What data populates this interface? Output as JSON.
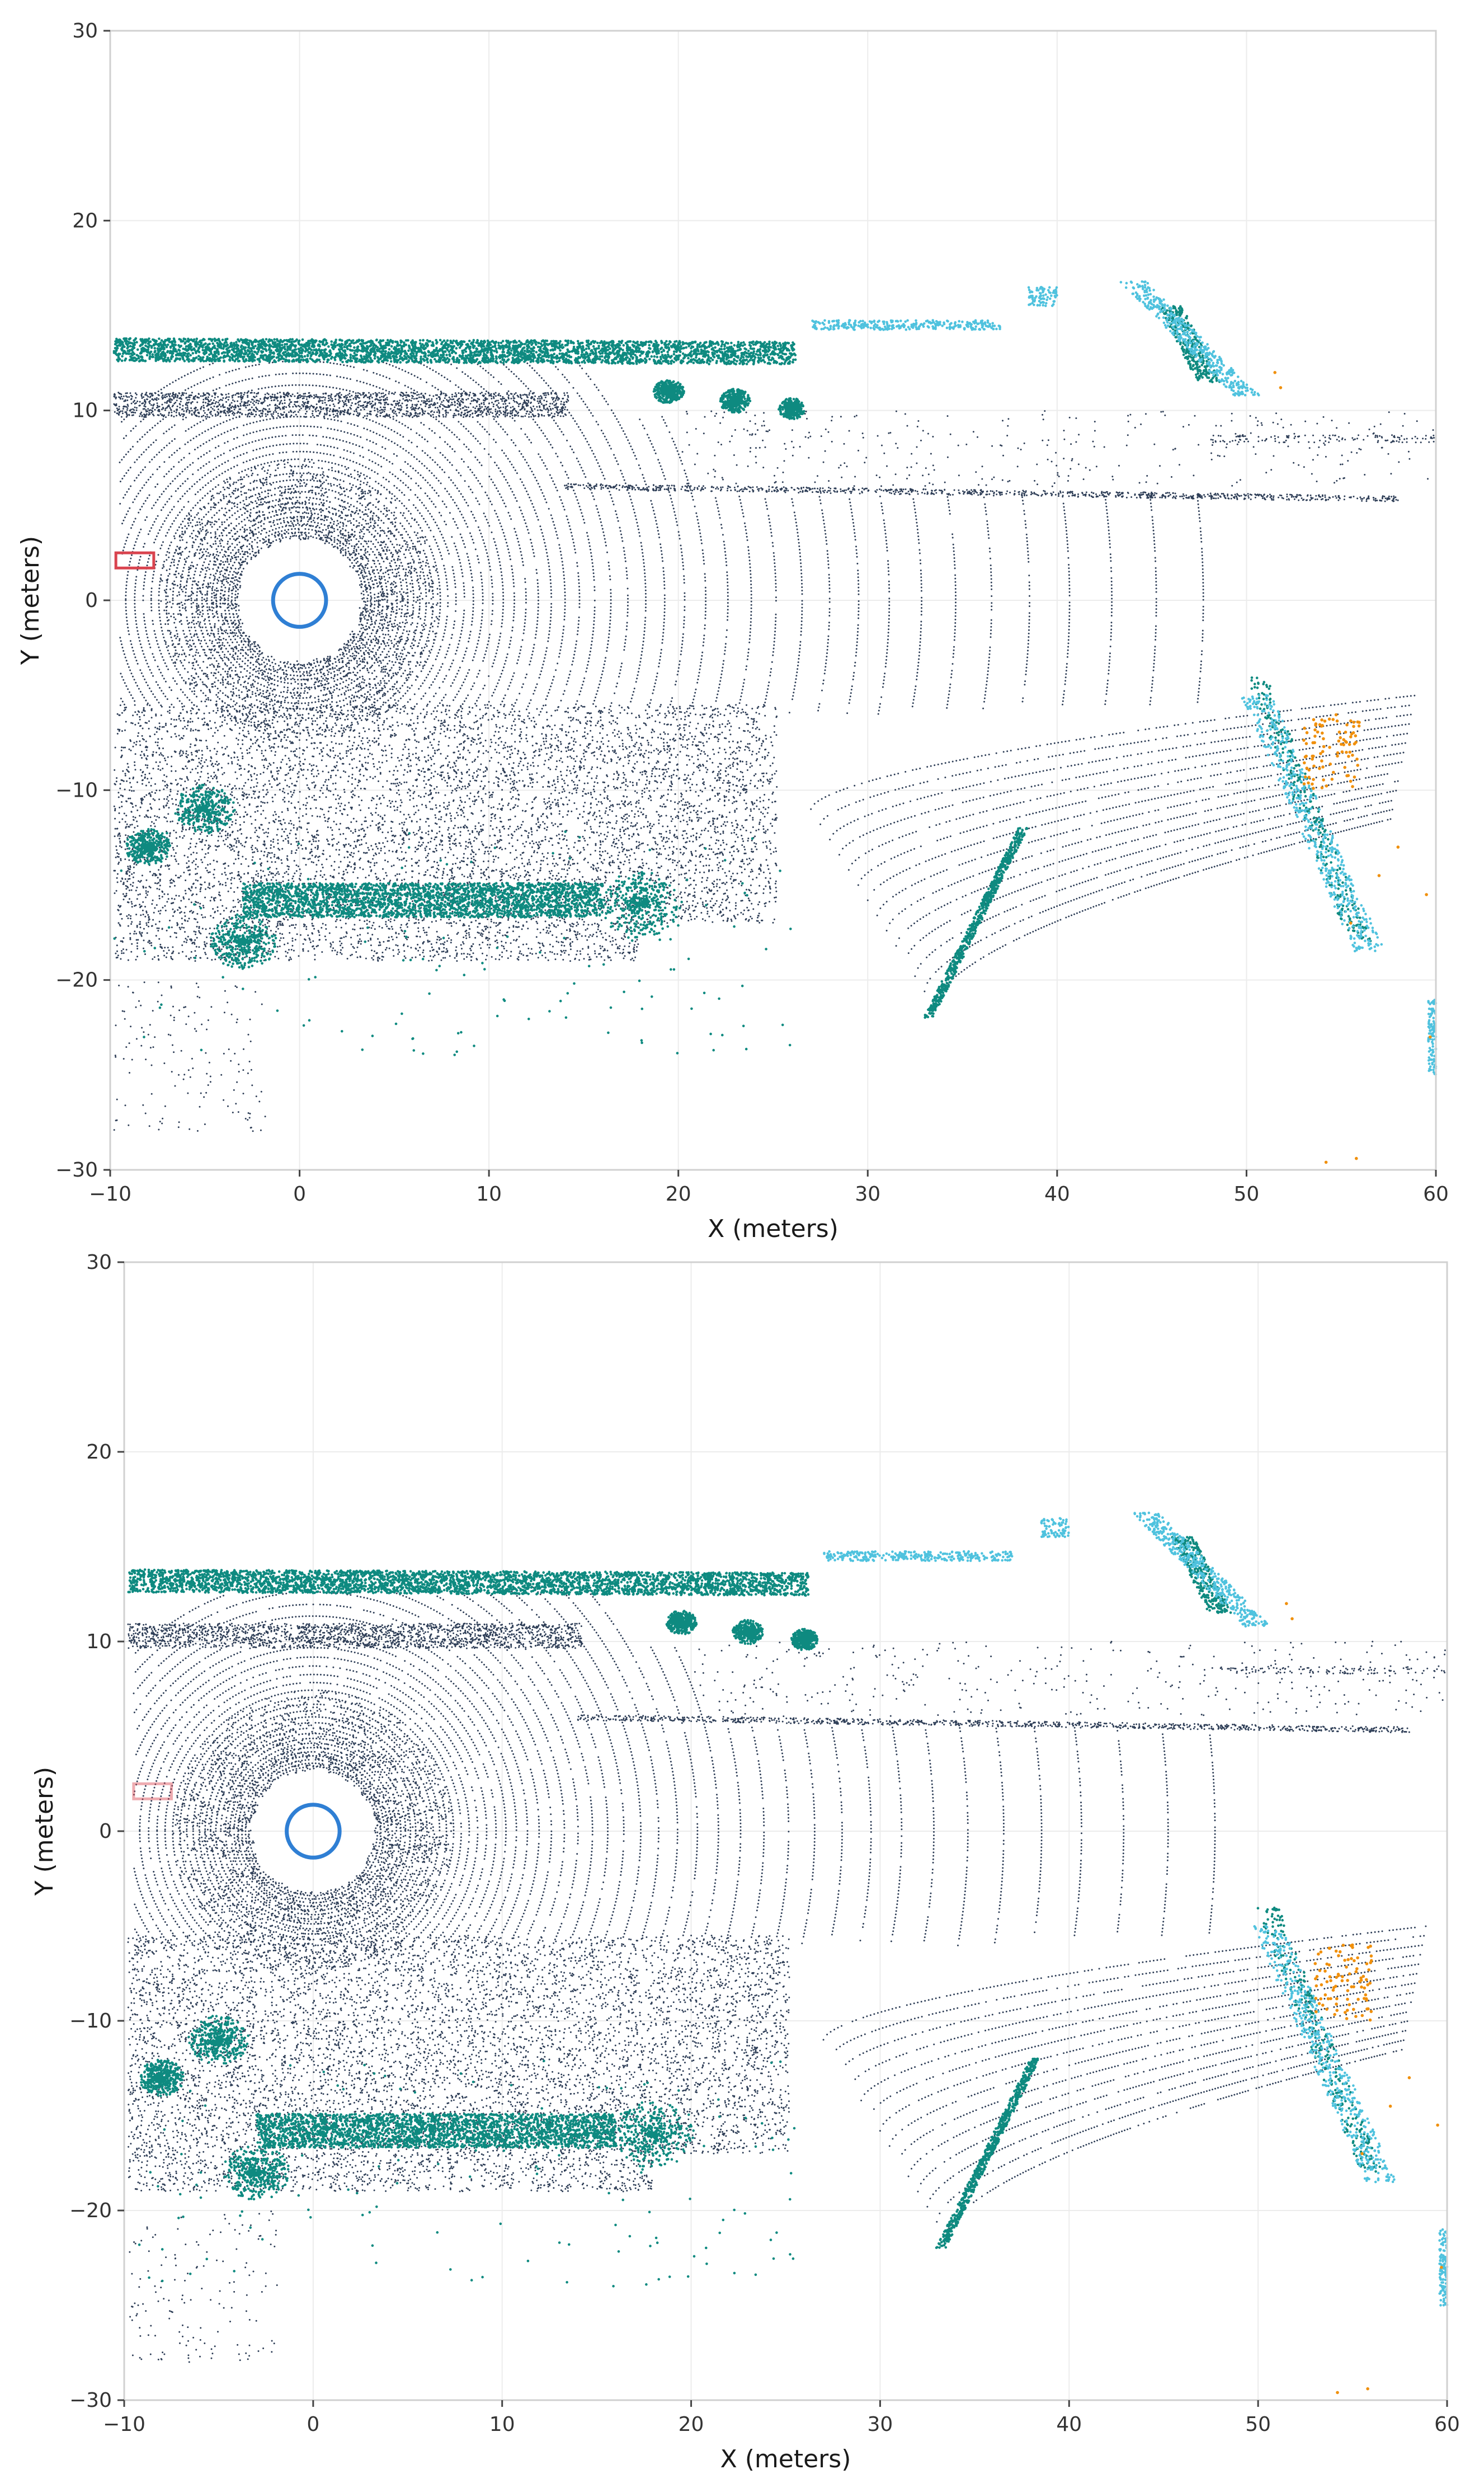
{
  "colors": {
    "ground": "#2e3e57",
    "vegetation": "#0e8a80",
    "vehicle": "#4fc2de",
    "pedestrian": "#f0900c",
    "ego": "#2f7fd4",
    "box": "#d9444f"
  },
  "chart_data": [
    {
      "type": "scatter",
      "title": "",
      "xlabel": "X (meters)",
      "ylabel": "Y (meters)",
      "xlim": [
        -10,
        60
      ],
      "ylim": [
        -30,
        30
      ],
      "xticks": [
        "−10",
        "0",
        "10",
        "20",
        "30",
        "40",
        "50",
        "60"
      ],
      "yticks": [
        "−30",
        "−20",
        "−10",
        "0",
        "10",
        "20",
        "30"
      ],
      "grid": true,
      "legend": "none",
      "ego_marker": {
        "x": 0,
        "y": 0,
        "radius": 1.4,
        "shape": "ring"
      },
      "box_marker": {
        "x": -8.7,
        "y": 2.1,
        "width": 2.0,
        "height": 0.8,
        "style": "solid"
      },
      "series": [
        {
          "color": "ground",
          "description_points": "concentric scan rings + far-range returns"
        },
        {
          "color": "vegetation",
          "description_points": "hedges along y≈13 and y≈-16, clusters"
        },
        {
          "color": "vehicle",
          "description_points": "right-side clusters near x≈45-57"
        },
        {
          "color": "pedestrian",
          "description_points": "sparse points near x≈52-60"
        }
      ]
    },
    {
      "type": "scatter",
      "title": "",
      "xlabel": "X (meters)",
      "ylabel": "Y (meters)",
      "xlim": [
        -10,
        60
      ],
      "ylim": [
        -30,
        30
      ],
      "xticks": [
        "−10",
        "0",
        "10",
        "20",
        "30",
        "40",
        "50",
        "60"
      ],
      "yticks": [
        "−30",
        "−20",
        "−10",
        "0",
        "10",
        "20",
        "30"
      ],
      "grid": true,
      "legend": "none",
      "ego_marker": {
        "x": 0,
        "y": 0,
        "radius": 1.4,
        "shape": "ring"
      },
      "box_marker": {
        "x": -8.5,
        "y": 2.1,
        "width": 2.0,
        "height": 0.8,
        "style": "faint"
      },
      "series": [
        {
          "color": "ground"
        },
        {
          "color": "vegetation"
        },
        {
          "color": "vehicle"
        },
        {
          "color": "pedestrian"
        }
      ]
    }
  ]
}
